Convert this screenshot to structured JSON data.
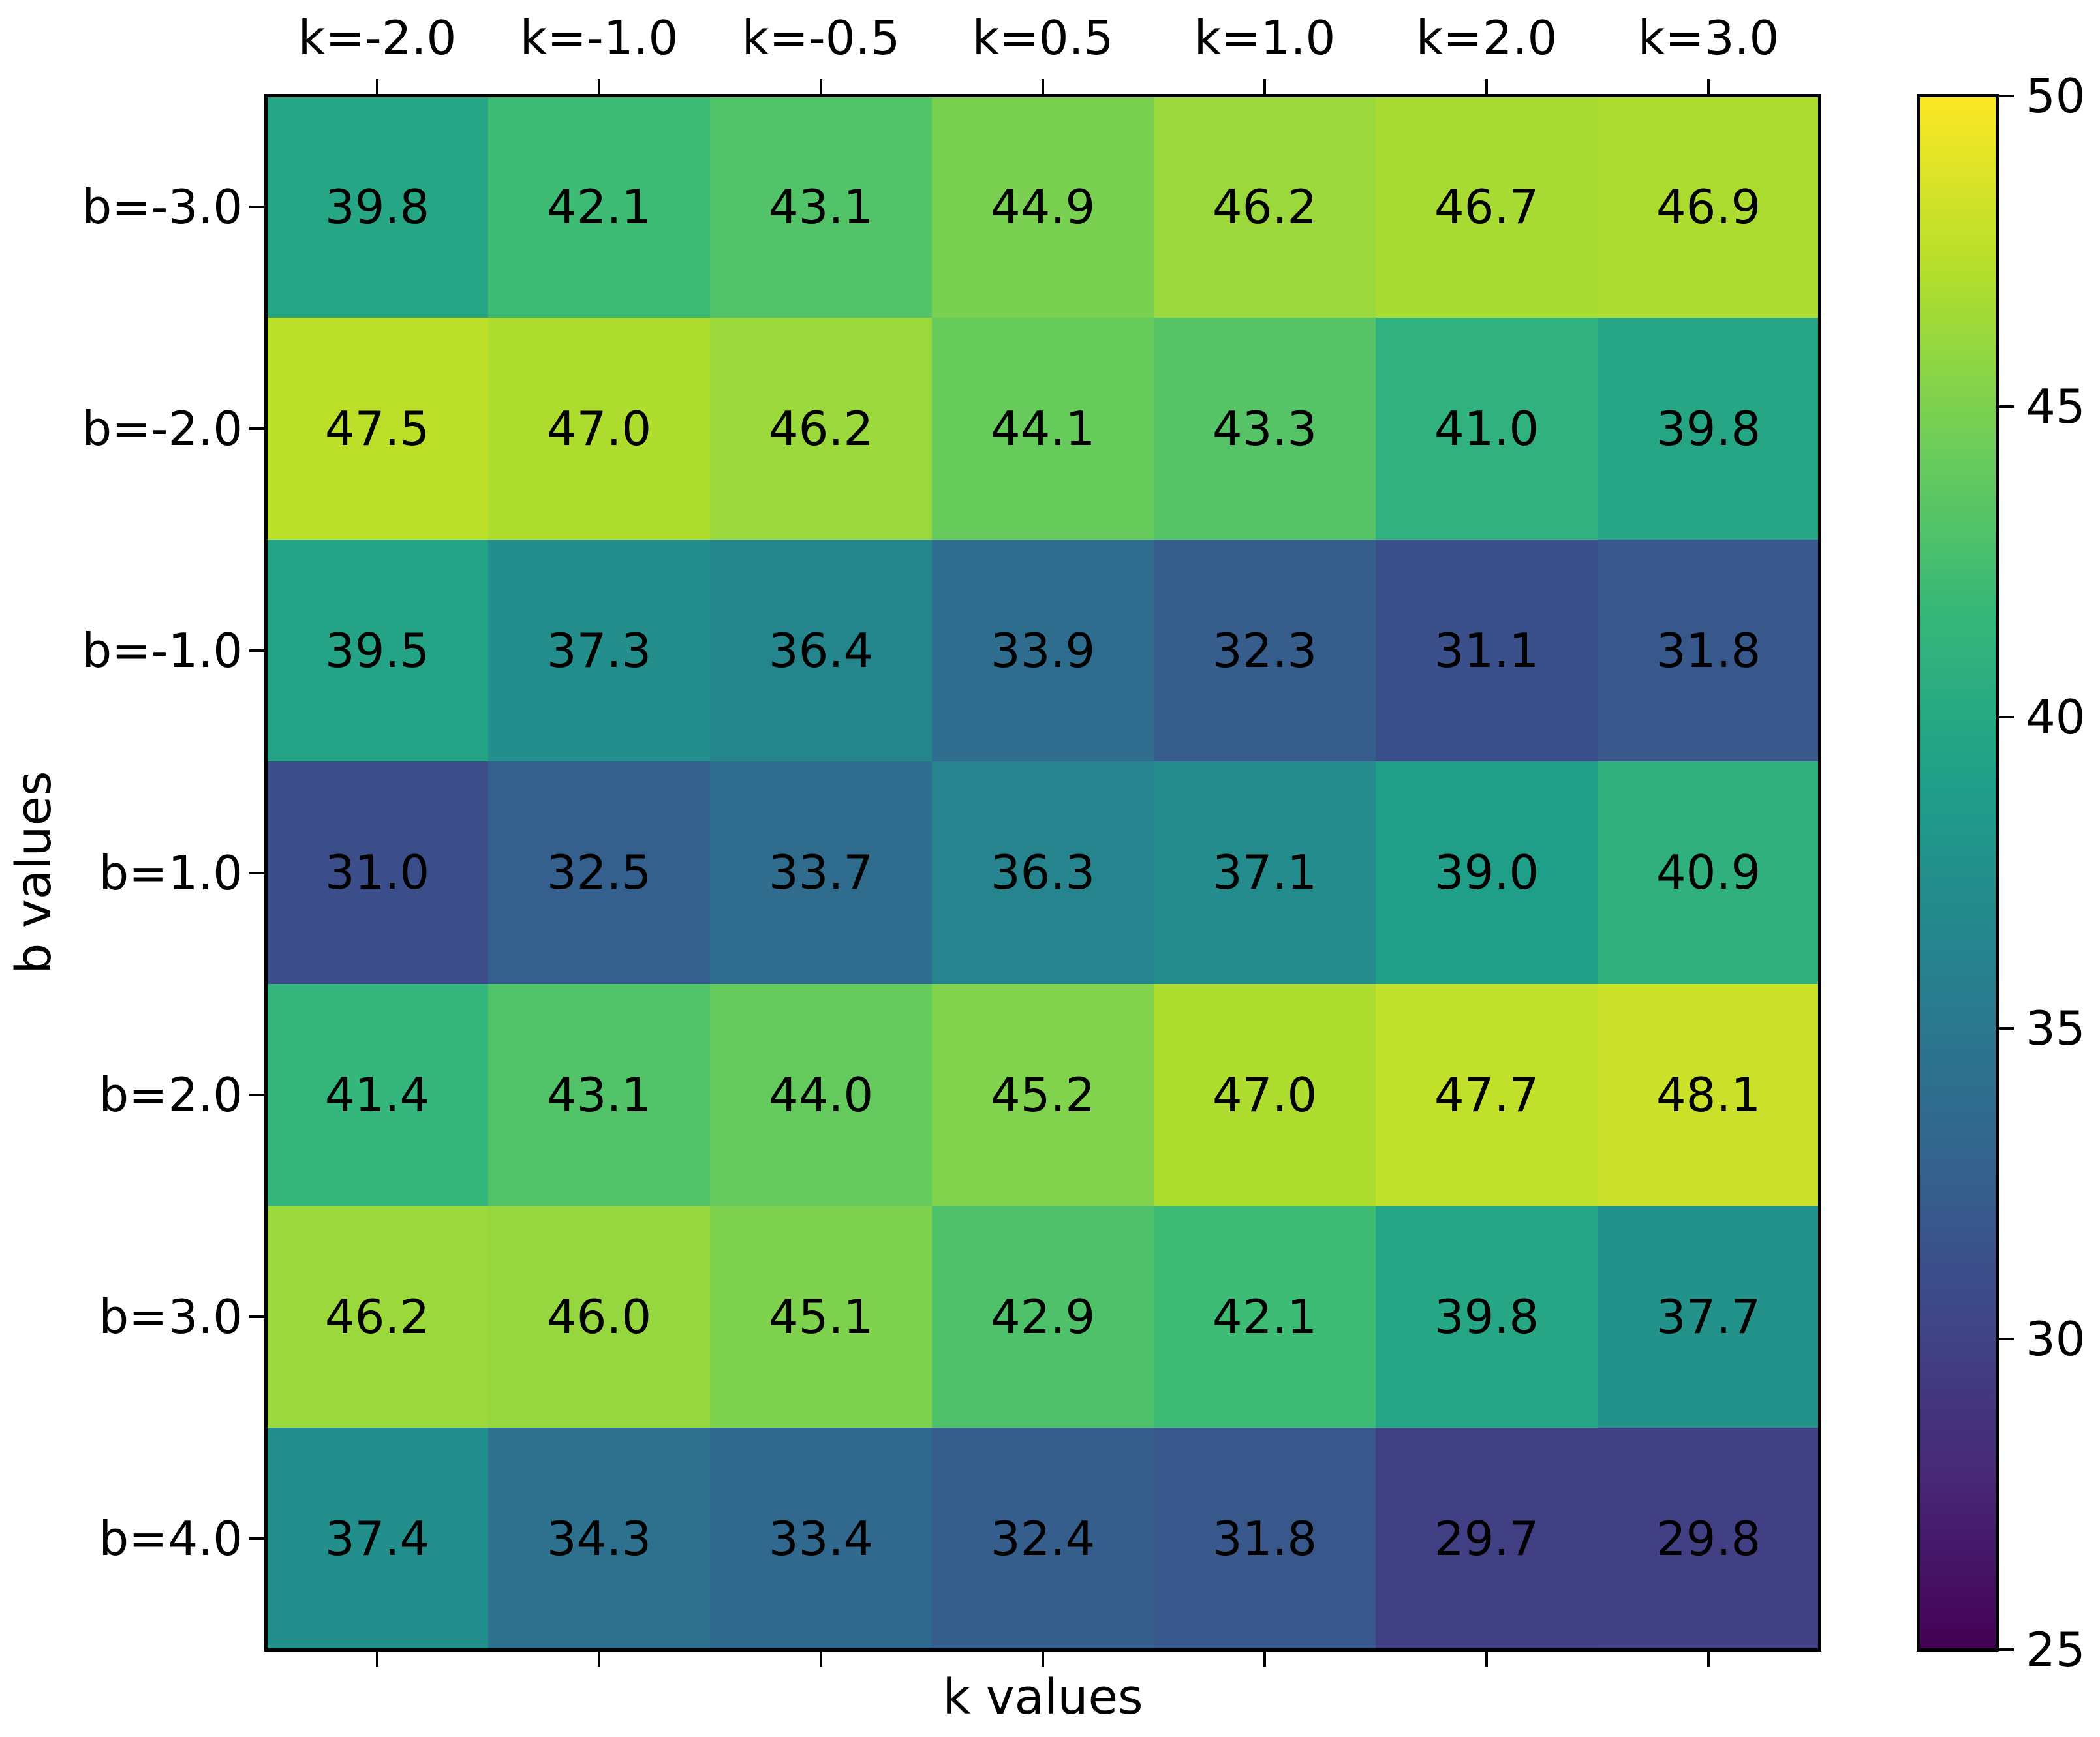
{
  "chart_data": {
    "type": "heatmap",
    "title": "",
    "xlabel": "k values",
    "ylabel": "b values",
    "col_labels": [
      "k=-2.0",
      "k=-1.0",
      "k=-0.5",
      "k=0.5",
      "k=1.0",
      "k=2.0",
      "k=3.0"
    ],
    "row_labels": [
      "b=-3.0",
      "b=-2.0",
      "b=-1.0",
      "b=1.0",
      "b=2.0",
      "b=3.0",
      "b=4.0"
    ],
    "values": [
      [
        39.8,
        42.1,
        43.1,
        44.9,
        46.2,
        46.7,
        46.9
      ],
      [
        47.5,
        47.0,
        46.2,
        44.1,
        43.3,
        41.0,
        39.8
      ],
      [
        39.5,
        37.3,
        36.4,
        33.9,
        32.3,
        31.1,
        31.8
      ],
      [
        31.0,
        32.5,
        33.7,
        36.3,
        37.1,
        39.0,
        40.9
      ],
      [
        41.4,
        43.1,
        44.0,
        45.2,
        47.0,
        47.7,
        48.1
      ],
      [
        46.2,
        46.0,
        45.1,
        42.9,
        42.1,
        39.8,
        37.7
      ],
      [
        37.4,
        34.3,
        33.4,
        32.4,
        31.8,
        29.7,
        29.8
      ]
    ],
    "value_decimals": 1,
    "cell_text_color": "#000000",
    "grid": false,
    "colorbar": {
      "position": "right",
      "vmin": 25,
      "vmax": 50,
      "ticks": [
        25,
        30,
        35,
        40,
        45,
        50
      ],
      "colormap": "viridis"
    },
    "colormap_stops": [
      [
        0.0,
        "#440154"
      ],
      [
        0.111,
        "#482878"
      ],
      [
        0.222,
        "#3e4989"
      ],
      [
        0.333,
        "#31688e"
      ],
      [
        0.444,
        "#26828e"
      ],
      [
        0.556,
        "#1f9e89"
      ],
      [
        0.667,
        "#35b779"
      ],
      [
        0.778,
        "#6ece58"
      ],
      [
        0.889,
        "#b5de2b"
      ],
      [
        1.0,
        "#fde725"
      ]
    ],
    "axis_color": "#000000",
    "background_color": "#ffffff"
  }
}
